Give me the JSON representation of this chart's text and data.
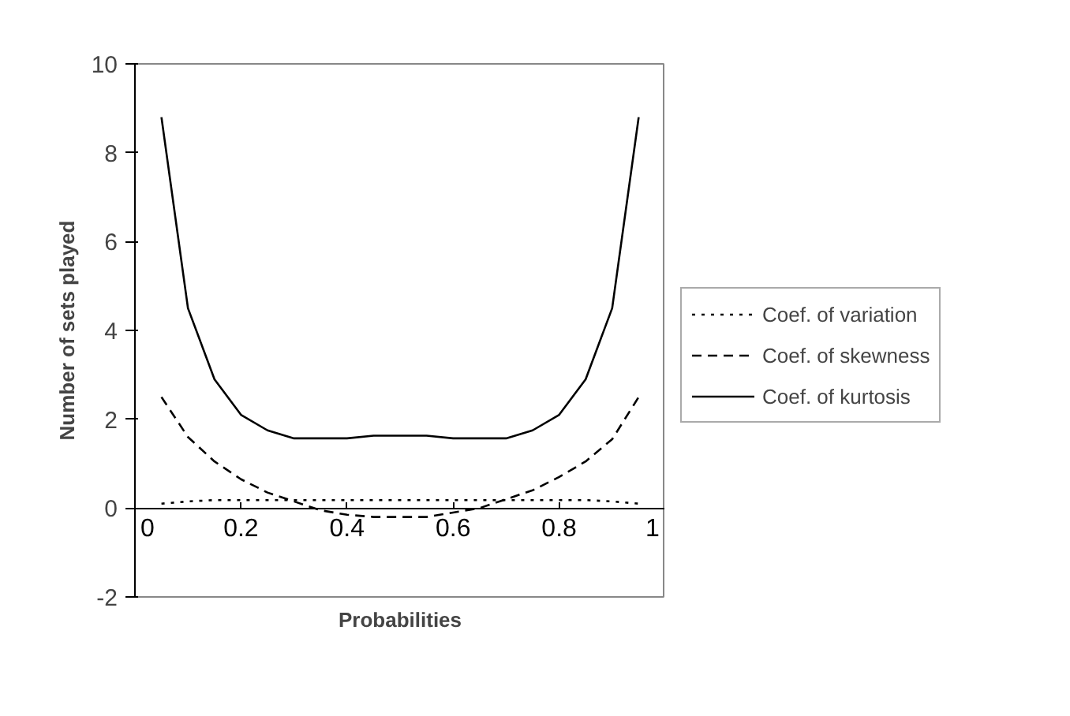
{
  "chart_data": {
    "type": "line",
    "xlabel": "Probabilities",
    "ylabel": "Number of sets played",
    "x": [
      0.05,
      0.1,
      0.15,
      0.2,
      0.25,
      0.3,
      0.35,
      0.4,
      0.45,
      0.5,
      0.55,
      0.6,
      0.65,
      0.7,
      0.75,
      0.8,
      0.85,
      0.9,
      0.95
    ],
    "series": [
      {
        "name": "Coef. of variation",
        "color": "#000000",
        "line_style": "dotted",
        "values": [
          0.1,
          0.15,
          0.18,
          0.18,
          0.18,
          0.18,
          0.18,
          0.18,
          0.18,
          0.18,
          0.18,
          0.18,
          0.18,
          0.18,
          0.18,
          0.18,
          0.18,
          0.15,
          0.1
        ]
      },
      {
        "name": "Coef. of skewness",
        "color": "#000000",
        "line_style": "dashed",
        "values": [
          2.5,
          1.6,
          1.05,
          0.65,
          0.35,
          0.15,
          -0.05,
          -0.15,
          -0.2,
          -0.2,
          -0.2,
          -0.1,
          0.0,
          0.2,
          0.4,
          0.7,
          1.05,
          1.55,
          2.5
        ]
      },
      {
        "name": "Coef. of kurtosis",
        "color": "#000000",
        "line_style": "solid",
        "values": [
          8.8,
          4.5,
          2.9,
          2.1,
          1.75,
          1.57,
          1.57,
          1.57,
          1.63,
          1.63,
          1.63,
          1.57,
          1.57,
          1.57,
          1.75,
          2.1,
          2.9,
          4.5,
          8.8
        ]
      }
    ],
    "xlim": [
      0,
      1
    ],
    "ylim": [
      -2,
      10
    ],
    "xticks": [
      0,
      0.2,
      0.4,
      0.6,
      0.8,
      1
    ],
    "yticks": [
      -2,
      0,
      2,
      4,
      6,
      8,
      10
    ],
    "grid": false,
    "legend": "right",
    "marker": "none"
  }
}
